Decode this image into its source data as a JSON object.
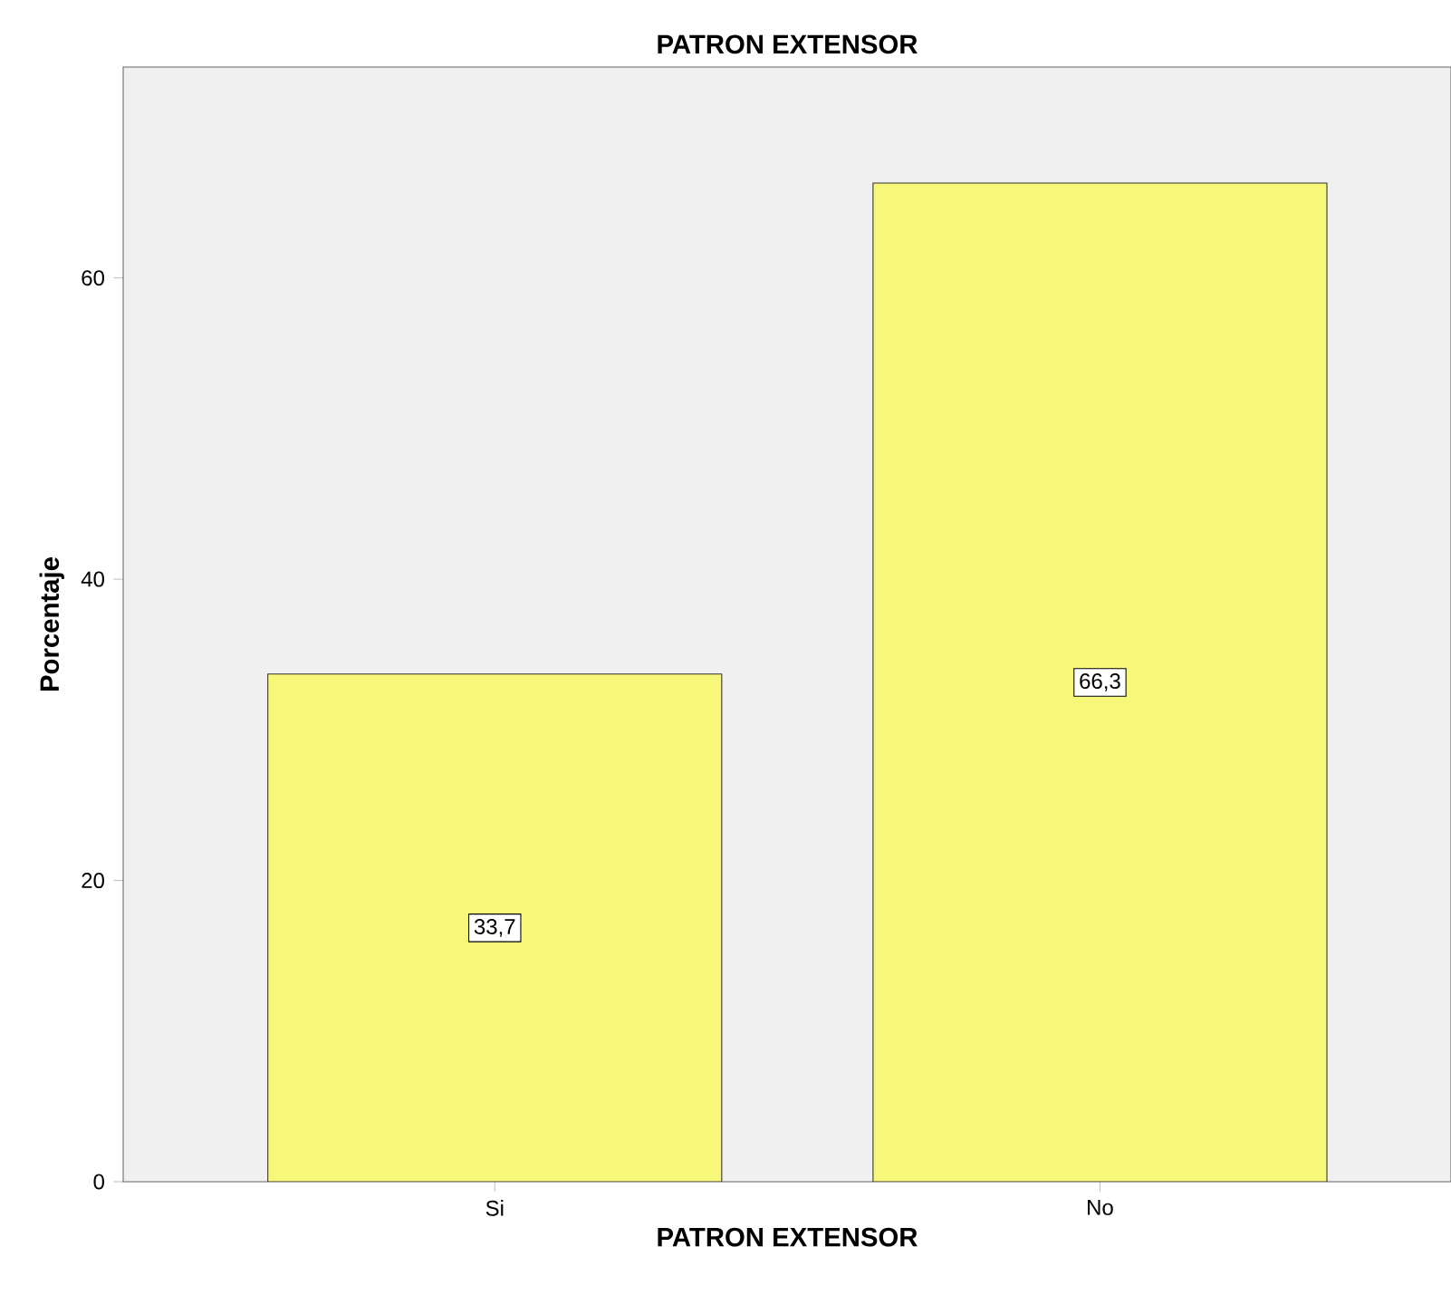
{
  "chart_data": {
    "type": "bar",
    "title": "PATRON EXTENSOR",
    "xlabel": "PATRON EXTENSOR",
    "ylabel": "Porcentaje",
    "categories": [
      "Si",
      "No"
    ],
    "values": [
      33.7,
      66.3
    ],
    "value_labels": [
      "33,7",
      "66,3"
    ],
    "color": "#f7f779",
    "ylim": [
      0,
      74
    ],
    "yticks": [
      0,
      20,
      40,
      60
    ],
    "grid": false
  }
}
